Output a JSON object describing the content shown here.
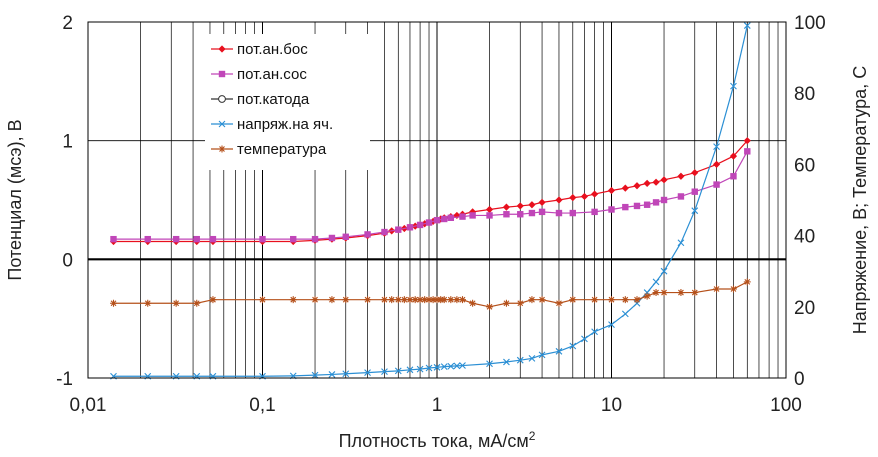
{
  "chart_data": {
    "type": "line",
    "x_scale": "log",
    "xlim": [
      0.01,
      100
    ],
    "ylim_left": [
      -1,
      2
    ],
    "ylim_right": [
      0,
      100
    ],
    "grid": true,
    "legend_position": "top-left",
    "xlabel": "Плотность тока, мА/см",
    "xlabel_sup": "2",
    "ylabel_left": "Потенциал (мсэ), В",
    "ylabel_right": "Напряжение, В; Температура, С",
    "x_ticks": [
      {
        "value": 0.01,
        "label": "0,01"
      },
      {
        "value": 0.1,
        "label": "0,1"
      },
      {
        "value": 1,
        "label": "1"
      },
      {
        "value": 10,
        "label": "10"
      },
      {
        "value": 100,
        "label": "100"
      }
    ],
    "y_left_ticks": [
      {
        "value": 2,
        "label": "2"
      },
      {
        "value": 1,
        "label": "1"
      },
      {
        "value": 0,
        "label": "0"
      },
      {
        "value": -1,
        "label": "-1"
      }
    ],
    "y_right_ticks": [
      {
        "value": 100,
        "label": "100"
      },
      {
        "value": 80,
        "label": "80"
      },
      {
        "value": 60,
        "label": "60"
      },
      {
        "value": 40,
        "label": "40"
      },
      {
        "value": 20,
        "label": "20"
      },
      {
        "value": 0,
        "label": "0"
      }
    ],
    "series": [
      {
        "name": "пот.ан.бос",
        "axis": "left",
        "color": "#e8101e",
        "marker": "diamond",
        "x": [
          0.014,
          0.022,
          0.032,
          0.042,
          0.052,
          0.1,
          0.15,
          0.2,
          0.25,
          0.3,
          0.4,
          0.5,
          0.55,
          0.6,
          0.65,
          0.7,
          0.75,
          0.8,
          0.85,
          0.9,
          0.95,
          1.0,
          1.05,
          1.1,
          1.2,
          1.3,
          1.4,
          1.6,
          2.0,
          2.5,
          3.0,
          3.5,
          4.0,
          5.0,
          6.0,
          7.0,
          8.0,
          10,
          12,
          14,
          16,
          18,
          20,
          25,
          30,
          40,
          50,
          60
        ],
        "y": [
          0.15,
          0.15,
          0.15,
          0.15,
          0.15,
          0.15,
          0.15,
          0.16,
          0.17,
          0.18,
          0.2,
          0.22,
          0.24,
          0.25,
          0.26,
          0.27,
          0.28,
          0.29,
          0.3,
          0.31,
          0.32,
          0.33,
          0.34,
          0.35,
          0.36,
          0.37,
          0.38,
          0.4,
          0.42,
          0.44,
          0.45,
          0.46,
          0.48,
          0.5,
          0.52,
          0.53,
          0.55,
          0.58,
          0.6,
          0.62,
          0.64,
          0.65,
          0.67,
          0.7,
          0.73,
          0.8,
          0.87,
          1.0
        ]
      },
      {
        "name": "пот.ан.сос",
        "axis": "left",
        "color": "#c046b8",
        "marker": "square",
        "x": [
          0.014,
          0.022,
          0.032,
          0.042,
          0.052,
          0.1,
          0.15,
          0.2,
          0.25,
          0.3,
          0.4,
          0.5,
          0.6,
          0.7,
          0.8,
          0.9,
          1.0,
          1.1,
          1.2,
          1.4,
          1.6,
          2.0,
          2.5,
          3.0,
          3.5,
          4.0,
          5.0,
          6.0,
          8.0,
          10,
          12,
          14,
          16,
          18,
          20,
          25,
          30,
          40,
          50,
          60
        ],
        "y": [
          0.17,
          0.17,
          0.17,
          0.17,
          0.17,
          0.17,
          0.17,
          0.17,
          0.18,
          0.19,
          0.21,
          0.23,
          0.25,
          0.27,
          0.29,
          0.31,
          0.33,
          0.34,
          0.35,
          0.36,
          0.37,
          0.37,
          0.38,
          0.38,
          0.39,
          0.4,
          0.39,
          0.39,
          0.4,
          0.42,
          0.44,
          0.45,
          0.46,
          0.48,
          0.5,
          0.53,
          0.57,
          0.63,
          0.7,
          0.91
        ]
      },
      {
        "name": "пот.катода",
        "axis": "left",
        "color": "#333333",
        "marker": "circle",
        "x": [],
        "y": []
      },
      {
        "name": "напряж.на яч.",
        "axis": "right",
        "color": "#2b8fd4",
        "marker": "x",
        "x": [
          0.014,
          0.022,
          0.032,
          0.042,
          0.052,
          0.1,
          0.15,
          0.2,
          0.25,
          0.3,
          0.4,
          0.5,
          0.6,
          0.7,
          0.8,
          0.9,
          1.0,
          1.1,
          1.2,
          1.3,
          1.4,
          2.0,
          2.5,
          3.0,
          3.5,
          4.0,
          5.0,
          6.0,
          7.0,
          8.0,
          10,
          12,
          14,
          16,
          18,
          20,
          25,
          30,
          40,
          50,
          60
        ],
        "y": [
          0.5,
          0.5,
          0.5,
          0.5,
          0.5,
          0.5,
          0.6,
          0.8,
          1.0,
          1.2,
          1.5,
          1.8,
          2.0,
          2.3,
          2.5,
          2.8,
          3.0,
          3.2,
          3.3,
          3.4,
          3.5,
          4.0,
          4.5,
          5.0,
          5.5,
          6.5,
          7.5,
          9.0,
          11,
          13,
          15,
          18,
          21,
          24,
          27,
          30,
          38,
          47,
          65,
          82,
          99
        ]
      },
      {
        "name": "температура",
        "axis": "right",
        "color": "#b5501a",
        "marker": "star",
        "x": [
          0.014,
          0.022,
          0.032,
          0.042,
          0.052,
          0.1,
          0.15,
          0.2,
          0.25,
          0.3,
          0.4,
          0.5,
          0.55,
          0.6,
          0.65,
          0.7,
          0.75,
          0.8,
          0.85,
          0.9,
          0.95,
          1.0,
          1.05,
          1.1,
          1.2,
          1.3,
          1.4,
          1.6,
          2.0,
          2.5,
          3.0,
          3.5,
          4.0,
          5.0,
          6.0,
          8.0,
          10,
          12,
          14,
          16,
          18,
          20,
          25,
          30,
          40,
          50,
          60
        ],
        "y": [
          21,
          21,
          21,
          21,
          22,
          22,
          22,
          22,
          22,
          22,
          22,
          22,
          22,
          22,
          22,
          22,
          22,
          22,
          22,
          22,
          22,
          22,
          22,
          22,
          22,
          22,
          22,
          21,
          20,
          21,
          21,
          22,
          22,
          21,
          22,
          22,
          22,
          22,
          22,
          23,
          24,
          24,
          24,
          24,
          25,
          25,
          27
        ]
      }
    ]
  }
}
